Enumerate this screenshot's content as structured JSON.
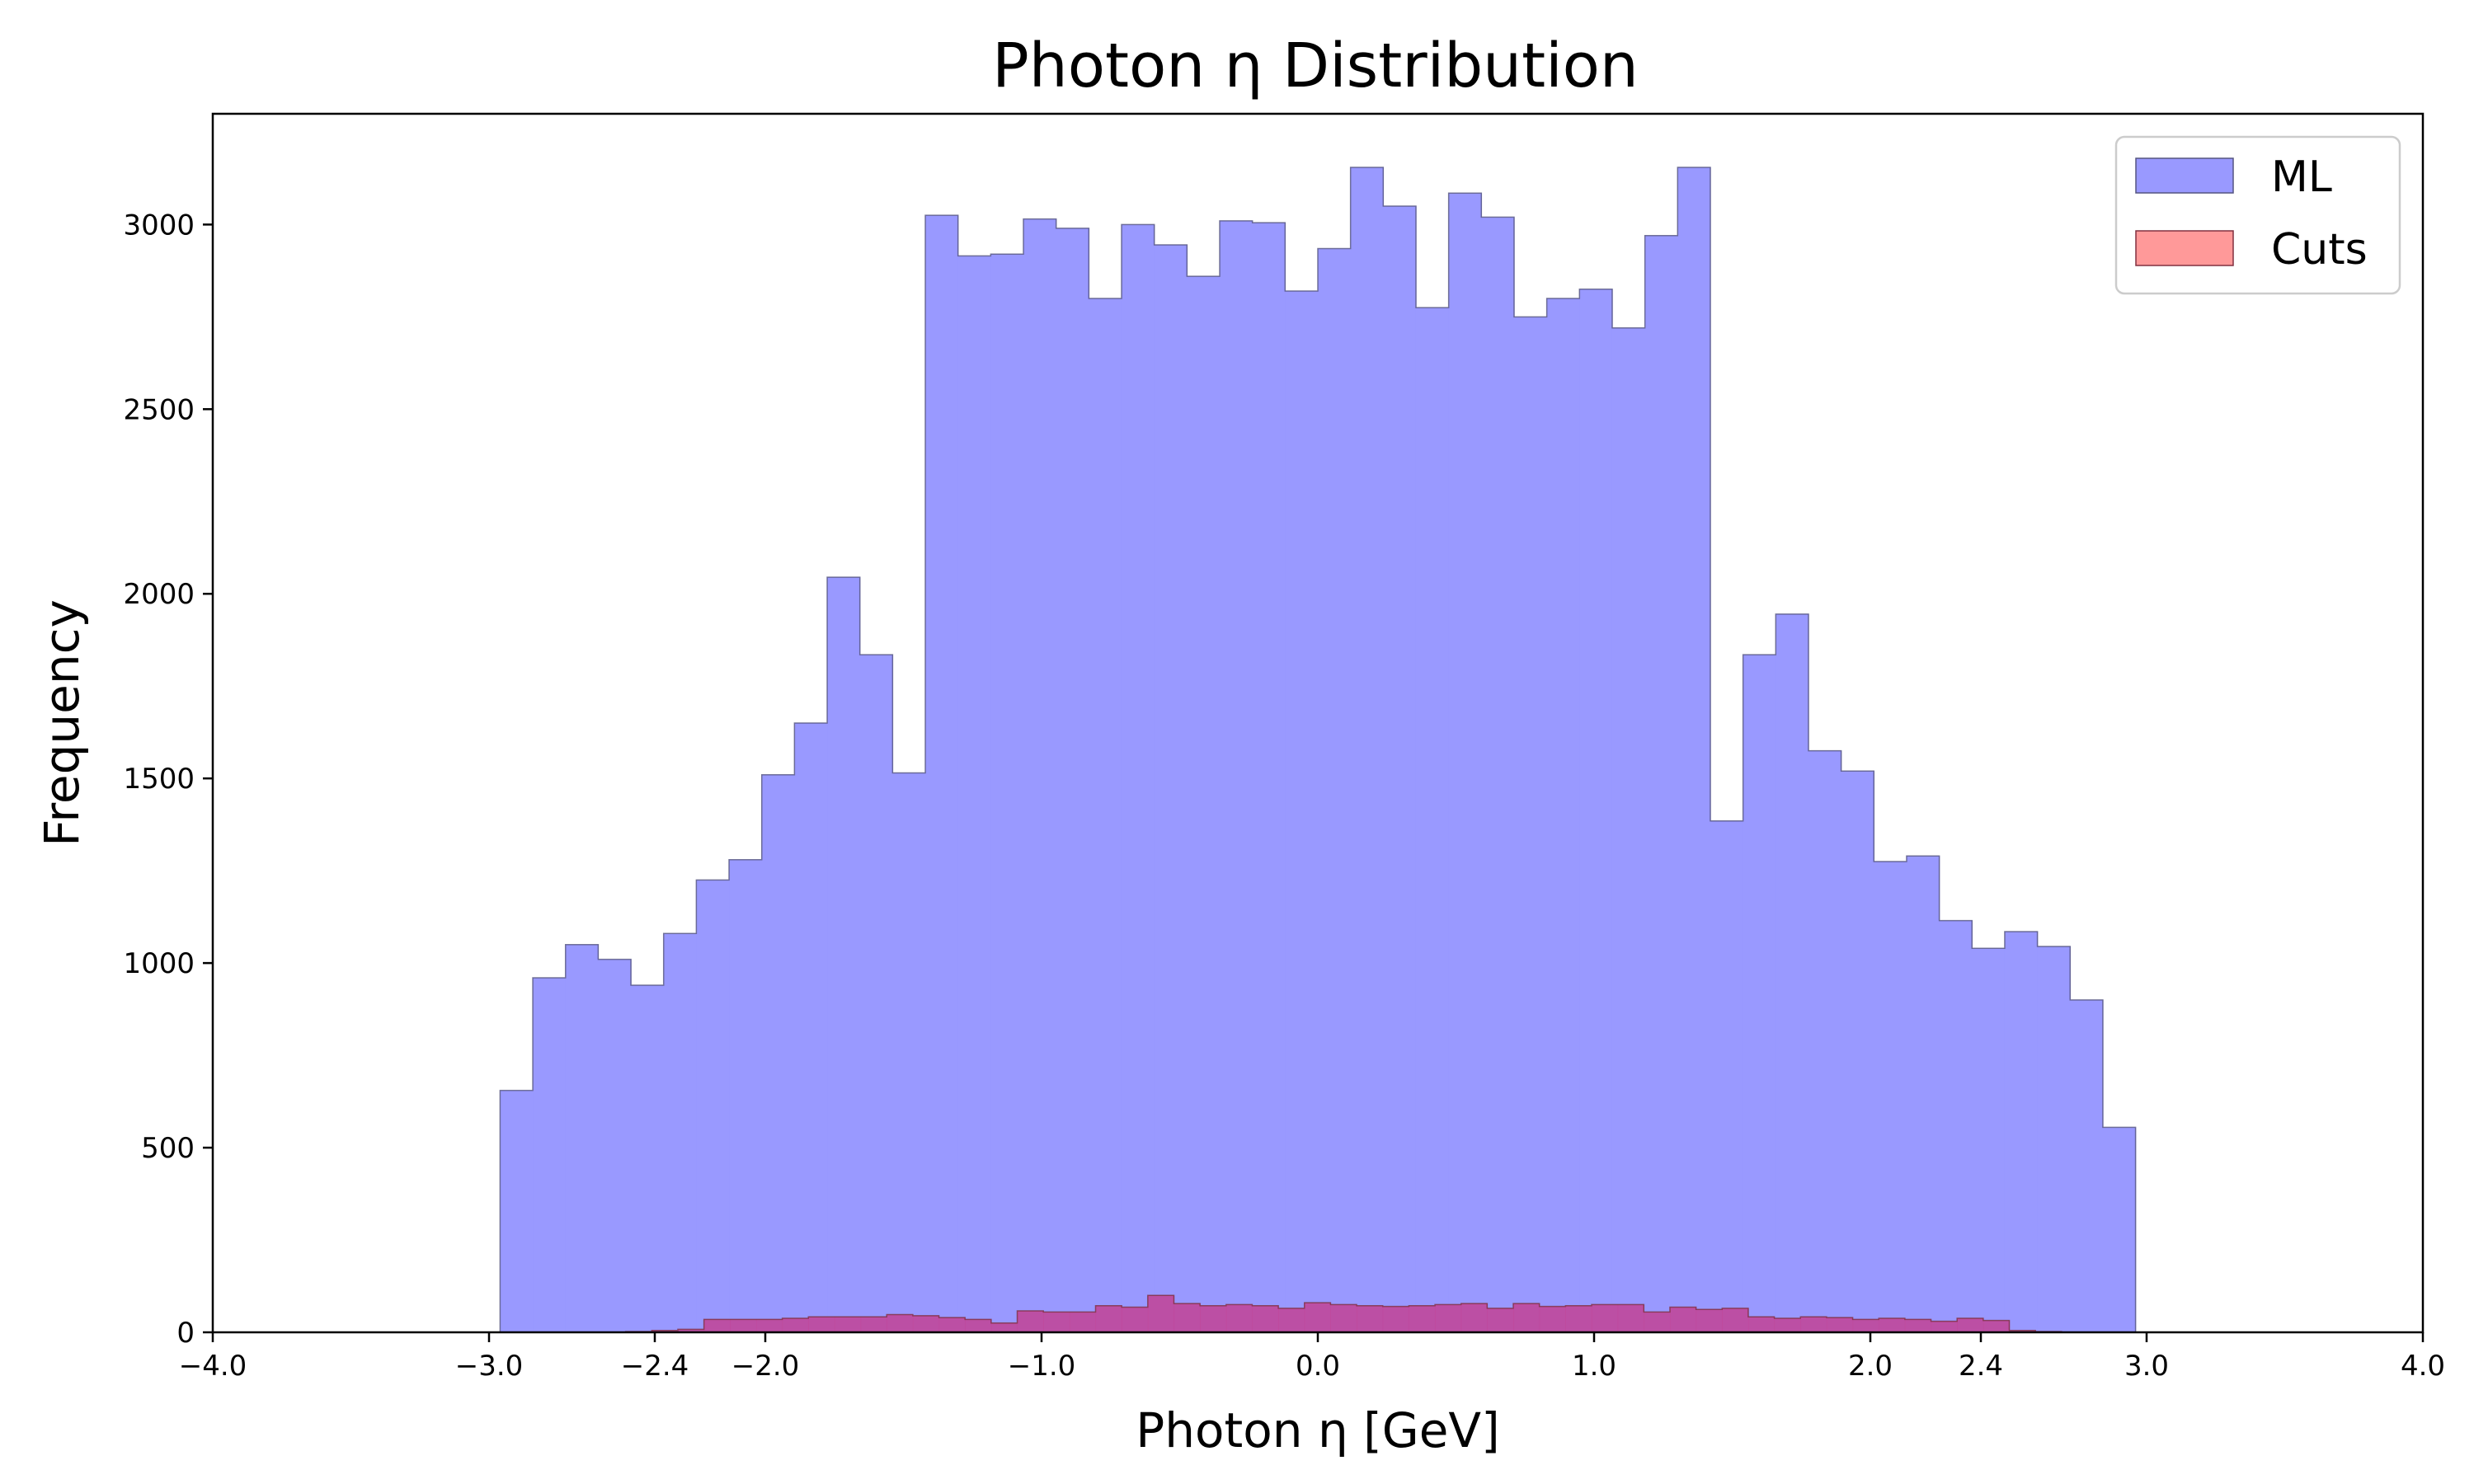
{
  "chart_data": {
    "type": "bar",
    "title": "Photon η Distribution",
    "xlabel": "Photon η [GeV]",
    "ylabel": "Frequency",
    "xlim": [
      -4.0,
      4.0
    ],
    "ylim": [
      0,
      3300
    ],
    "grid": false,
    "legend_position": "top-right",
    "x_ticks": [
      {
        "value": -4.0,
        "label": "−4.0"
      },
      {
        "value": -3.0,
        "label": "−3.0"
      },
      {
        "value": -2.4,
        "label": "−2.4"
      },
      {
        "value": -2.0,
        "label": "−2.0"
      },
      {
        "value": -1.0,
        "label": "−1.0"
      },
      {
        "value": 0.0,
        "label": "0.0"
      },
      {
        "value": 1.0,
        "label": "1.0"
      },
      {
        "value": 2.0,
        "label": "2.0"
      },
      {
        "value": 2.4,
        "label": "2.4"
      },
      {
        "value": 3.0,
        "label": "3.0"
      },
      {
        "value": 4.0,
        "label": "4.0"
      }
    ],
    "y_ticks": [
      {
        "value": 0,
        "label": "0"
      },
      {
        "value": 500,
        "label": "500"
      },
      {
        "value": 1000,
        "label": "1000"
      },
      {
        "value": 1500,
        "label": "1500"
      },
      {
        "value": 2000,
        "label": "2000"
      },
      {
        "value": 2500,
        "label": "2500"
      },
      {
        "value": 3000,
        "label": "3000"
      }
    ],
    "series": [
      {
        "name": "ML",
        "color": "#9999ff",
        "edge_color": "#555580",
        "bin_start": -2.96,
        "bin_width": 0.1184,
        "values": [
          655,
          960,
          1050,
          1010,
          940,
          1080,
          1225,
          1280,
          1510,
          1650,
          2045,
          1835,
          1515,
          3025,
          2915,
          2920,
          3015,
          2990,
          2800,
          3000,
          2945,
          2860,
          3010,
          3005,
          2820,
          2935,
          3155,
          3050,
          2775,
          3085,
          3020,
          2750,
          2800,
          2825,
          2720,
          2970,
          3155,
          1385,
          1835,
          1945,
          1575,
          1520,
          1275,
          1290,
          1115,
          1040,
          1085,
          1045,
          900,
          555
        ]
      },
      {
        "name": "Cuts",
        "color": "#ff9999",
        "edge_color": "#803040",
        "bin_start": -2.6,
        "bin_width": 0.0945,
        "values": [
          0,
          2,
          5,
          8,
          35,
          35,
          35,
          38,
          42,
          42,
          42,
          48,
          45,
          40,
          35,
          25,
          58,
          55,
          55,
          72,
          68,
          100,
          78,
          72,
          75,
          72,
          65,
          80,
          75,
          72,
          70,
          72,
          75,
          78,
          65,
          78,
          70,
          72,
          75,
          75,
          55,
          68,
          62,
          65,
          42,
          38,
          42,
          40,
          35,
          38,
          35,
          30,
          38,
          32,
          5,
          2
        ]
      }
    ]
  }
}
